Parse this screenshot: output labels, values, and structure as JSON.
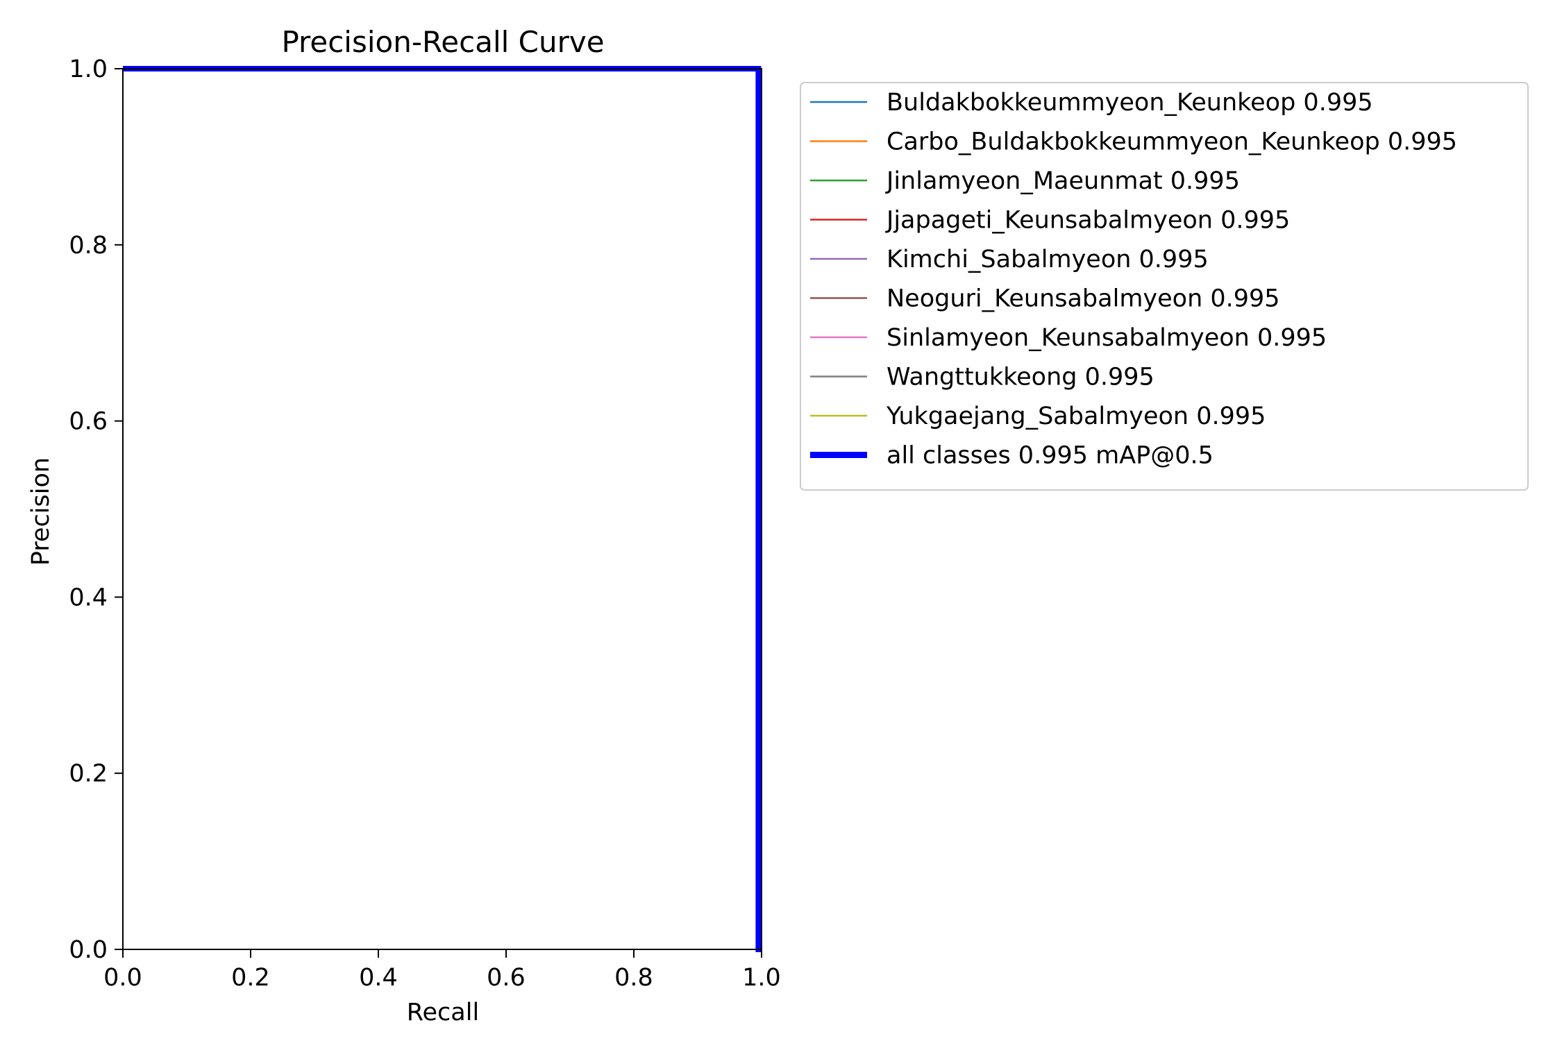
{
  "chart_data": {
    "type": "line",
    "title": "Precision-Recall Curve",
    "xlabel": "Recall",
    "ylabel": "Precision",
    "xlim": [
      0,
      1
    ],
    "ylim": [
      0,
      1
    ],
    "xticks": [
      "0.0",
      "0.2",
      "0.4",
      "0.6",
      "0.8",
      "1.0"
    ],
    "yticks": [
      "0.0",
      "0.2",
      "0.4",
      "0.6",
      "0.8",
      "1.0"
    ],
    "grid": false,
    "legend_position": "outside-right-top",
    "series": [
      {
        "name": "Buldakbokkeummyeon_Keunkeop",
        "label": "Buldakbokkeummyeon_Keunkeop 0.995",
        "ap": 0.995,
        "color": "#1f77b4",
        "x": [
          0,
          0.995,
          0.995,
          1.0
        ],
        "y": [
          1,
          1,
          0,
          0
        ]
      },
      {
        "name": "Carbo_Buldakbokkeummyeon_Keunkeop",
        "label": "Carbo_Buldakbokkeummyeon_Keunkeop 0.995",
        "ap": 0.995,
        "color": "#ff7f0e",
        "x": [
          0,
          0.995,
          0.995,
          1.0
        ],
        "y": [
          1,
          1,
          0,
          0
        ]
      },
      {
        "name": "Jinlamyeon_Maeunmat",
        "label": "Jinlamyeon_Maeunmat 0.995",
        "ap": 0.995,
        "color": "#2ca02c",
        "x": [
          0,
          0.995,
          0.995,
          1.0
        ],
        "y": [
          1,
          1,
          0,
          0
        ]
      },
      {
        "name": "Jjapageti_Keunsabalmyeon",
        "label": "Jjapageti_Keunsabalmyeon 0.995",
        "ap": 0.995,
        "color": "#d62728",
        "x": [
          0,
          0.995,
          0.995,
          1.0
        ],
        "y": [
          1,
          1,
          0,
          0
        ]
      },
      {
        "name": "Kimchi_Sabalmyeon",
        "label": "Kimchi_Sabalmyeon 0.995",
        "ap": 0.995,
        "color": "#9467bd",
        "x": [
          0,
          0.995,
          0.995,
          1.0
        ],
        "y": [
          1,
          1,
          0,
          0
        ]
      },
      {
        "name": "Neoguri_Keunsabalmyeon",
        "label": "Neoguri_Keunsabalmyeon 0.995",
        "ap": 0.995,
        "color": "#8c564b",
        "x": [
          0,
          0.995,
          0.995,
          1.0
        ],
        "y": [
          1,
          1,
          0,
          0
        ]
      },
      {
        "name": "Sinlamyeon_Keunsabalmyeon",
        "label": "Sinlamyeon_Keunsabalmyeon 0.995",
        "ap": 0.995,
        "color": "#e377c2",
        "x": [
          0,
          0.995,
          0.995,
          1.0
        ],
        "y": [
          1,
          1,
          0,
          0
        ]
      },
      {
        "name": "Wangttukkeong",
        "label": "Wangttukkeong 0.995",
        "ap": 0.995,
        "color": "#7f7f7f",
        "x": [
          0,
          0.995,
          0.995,
          1.0
        ],
        "y": [
          1,
          1,
          0,
          0
        ]
      },
      {
        "name": "Yukgaejang_Sabalmyeon",
        "label": "Yukgaejang_Sabalmyeon 0.995",
        "ap": 0.995,
        "color": "#bcbd22",
        "x": [
          0,
          0.995,
          0.995,
          1.0
        ],
        "y": [
          1,
          1,
          0,
          0
        ]
      },
      {
        "name": "all classes",
        "label": "all classes 0.995 mAP@0.5",
        "ap": 0.995,
        "color": "#0000ff",
        "thick": true,
        "x": [
          0,
          0.995,
          0.995,
          1.0
        ],
        "y": [
          1,
          1,
          0,
          0
        ]
      }
    ]
  }
}
